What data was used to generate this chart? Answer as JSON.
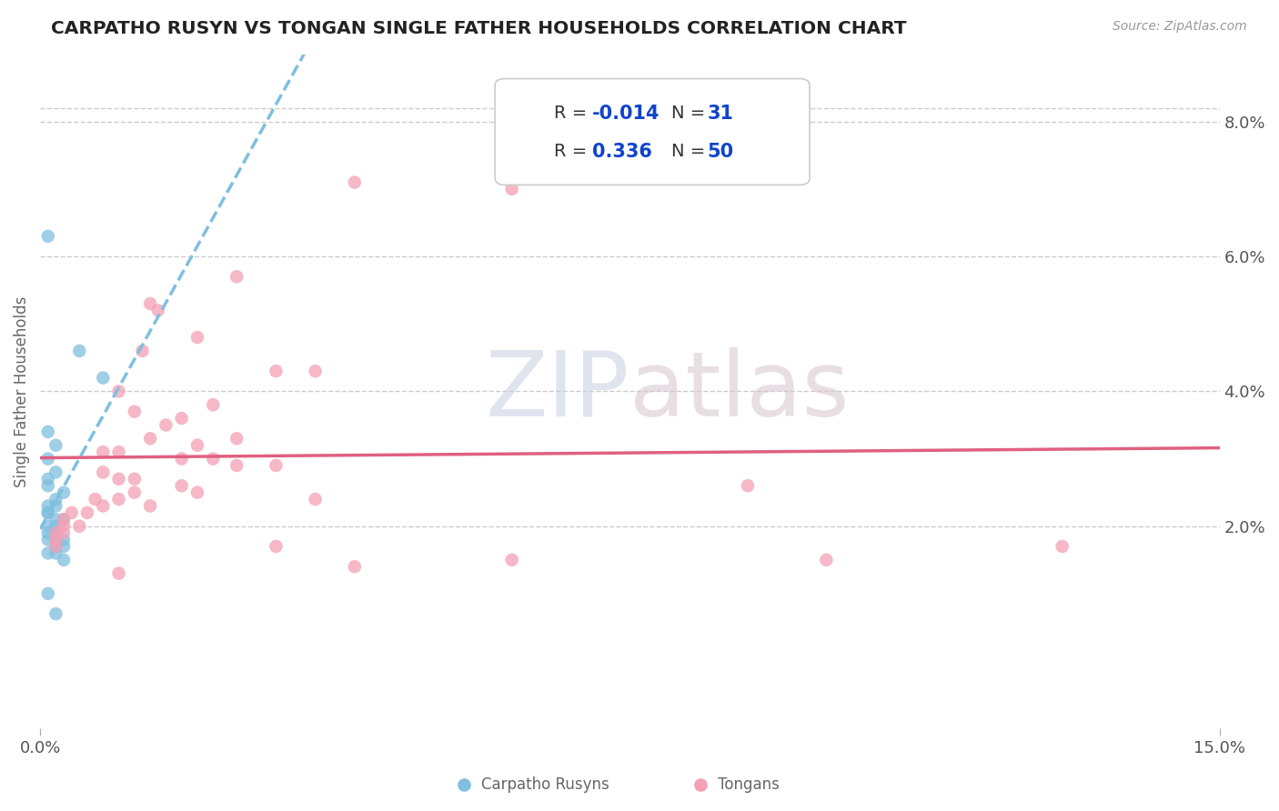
{
  "title": "CARPATHO RUSYN VS TONGAN SINGLE FATHER HOUSEHOLDS CORRELATION CHART",
  "source_text": "Source: ZipAtlas.com",
  "ylabel": "Single Father Households",
  "xlim": [
    0.0,
    0.15
  ],
  "ylim": [
    -0.01,
    0.09
  ],
  "color_blue": "#7fbfdf",
  "color_pink": "#f4a0b5",
  "color_blue_line": "#7fbfdf",
  "color_pink_line": "#e06080",
  "watermark_zip": "ZIP",
  "watermark_atlas": "atlas",
  "legend_r1_label": "R = ",
  "legend_r1_val": "-0.014",
  "legend_n1_label": "N = ",
  "legend_n1_val": " 31",
  "legend_r2_label": "R =  ",
  "legend_r2_val": "0.336",
  "legend_n2_label": "N = ",
  "legend_n2_val": "50",
  "blue_scatter": [
    [
      0.001,
      0.063
    ],
    [
      0.005,
      0.046
    ],
    [
      0.008,
      0.042
    ],
    [
      0.001,
      0.034
    ],
    [
      0.002,
      0.032
    ],
    [
      0.001,
      0.03
    ],
    [
      0.002,
      0.028
    ],
    [
      0.001,
      0.027
    ],
    [
      0.001,
      0.026
    ],
    [
      0.003,
      0.025
    ],
    [
      0.002,
      0.024
    ],
    [
      0.001,
      0.023
    ],
    [
      0.002,
      0.023
    ],
    [
      0.001,
      0.022
    ],
    [
      0.001,
      0.022
    ],
    [
      0.003,
      0.021
    ],
    [
      0.002,
      0.021
    ],
    [
      0.002,
      0.02
    ],
    [
      0.001,
      0.02
    ],
    [
      0.002,
      0.019
    ],
    [
      0.001,
      0.019
    ],
    [
      0.003,
      0.018
    ],
    [
      0.002,
      0.018
    ],
    [
      0.001,
      0.018
    ],
    [
      0.002,
      0.017
    ],
    [
      0.003,
      0.017
    ],
    [
      0.001,
      0.016
    ],
    [
      0.002,
      0.016
    ],
    [
      0.003,
      0.015
    ],
    [
      0.001,
      0.01
    ],
    [
      0.002,
      0.007
    ]
  ],
  "pink_scatter": [
    [
      0.04,
      0.071
    ],
    [
      0.06,
      0.07
    ],
    [
      0.025,
      0.057
    ],
    [
      0.014,
      0.053
    ],
    [
      0.015,
      0.052
    ],
    [
      0.02,
      0.048
    ],
    [
      0.013,
      0.046
    ],
    [
      0.03,
      0.043
    ],
    [
      0.035,
      0.043
    ],
    [
      0.01,
      0.04
    ],
    [
      0.022,
      0.038
    ],
    [
      0.012,
      0.037
    ],
    [
      0.018,
      0.036
    ],
    [
      0.016,
      0.035
    ],
    [
      0.014,
      0.033
    ],
    [
      0.025,
      0.033
    ],
    [
      0.02,
      0.032
    ],
    [
      0.008,
      0.031
    ],
    [
      0.01,
      0.031
    ],
    [
      0.018,
      0.03
    ],
    [
      0.022,
      0.03
    ],
    [
      0.025,
      0.029
    ],
    [
      0.03,
      0.029
    ],
    [
      0.008,
      0.028
    ],
    [
      0.012,
      0.027
    ],
    [
      0.01,
      0.027
    ],
    [
      0.018,
      0.026
    ],
    [
      0.012,
      0.025
    ],
    [
      0.02,
      0.025
    ],
    [
      0.007,
      0.024
    ],
    [
      0.01,
      0.024
    ],
    [
      0.014,
      0.023
    ],
    [
      0.008,
      0.023
    ],
    [
      0.006,
      0.022
    ],
    [
      0.004,
      0.022
    ],
    [
      0.003,
      0.021
    ],
    [
      0.003,
      0.02
    ],
    [
      0.005,
      0.02
    ],
    [
      0.003,
      0.019
    ],
    [
      0.002,
      0.019
    ],
    [
      0.002,
      0.018
    ],
    [
      0.002,
      0.017
    ],
    [
      0.035,
      0.024
    ],
    [
      0.03,
      0.017
    ],
    [
      0.09,
      0.026
    ],
    [
      0.04,
      0.014
    ],
    [
      0.06,
      0.015
    ],
    [
      0.1,
      0.015
    ],
    [
      0.13,
      0.017
    ],
    [
      0.01,
      0.013
    ]
  ]
}
